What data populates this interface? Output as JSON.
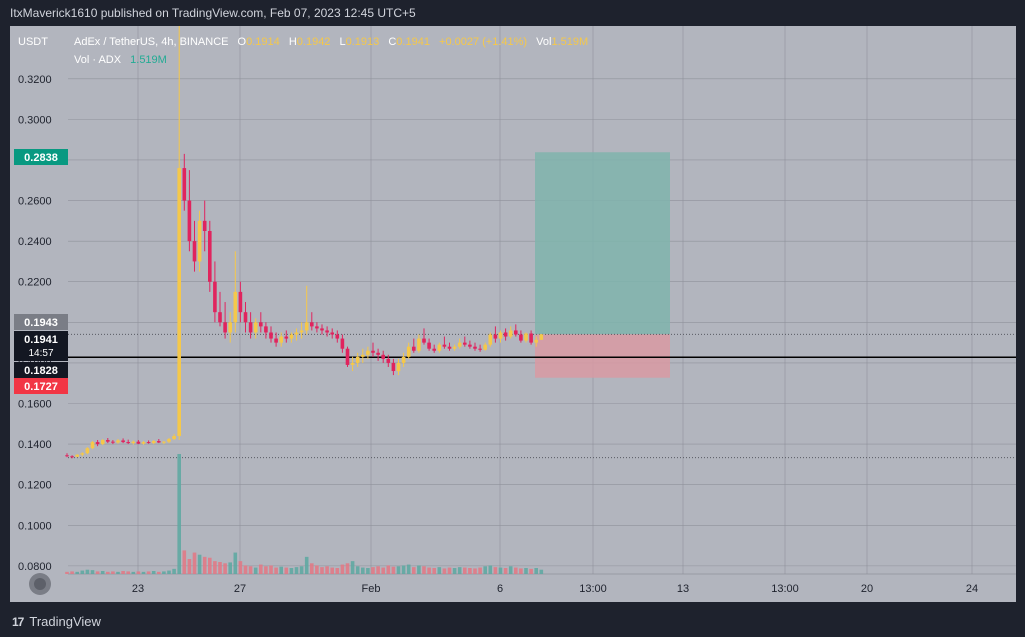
{
  "header": {
    "published_line": "ItxMaverick1610 published on TradingView.com, Feb 07, 2023 12:45 UTC+5"
  },
  "legend": {
    "currency": "USDT",
    "symbol_line": "AdEx / TetherUS, 4h, BINANCE",
    "o_label": "O",
    "o_value": "0.1914",
    "h_label": "H",
    "h_value": "0.1942",
    "l_label": "L",
    "l_value": "0.1913",
    "c_label": "C",
    "c_value": "0.1941",
    "change": "+0.0027 (+1.41%)",
    "vol_label": "Vol",
    "vol_value": "1.519M",
    "vol_line_label": "Vol · ADX",
    "vol_line_value": "1.519M"
  },
  "price_labels": {
    "target": "0.2838",
    "prev_close": "0.1943",
    "last_price": "0.1941",
    "countdown": "14:57",
    "line_level": "0.1828",
    "stop": "0.1727"
  },
  "footer": {
    "brand": "TradingView",
    "logo_text": "17"
  },
  "colors": {
    "background": "#b2b5be",
    "frame": "#1e222d",
    "bull": "#f5c84a",
    "bear": "#e0245e",
    "vol_bull": "#5fa9a2",
    "vol_bear": "#e07a86",
    "profit_zone": "#7fb4ad",
    "loss_zone": "#d89aa3",
    "target_badge": "#089981",
    "stop_badge": "#f23645"
  },
  "chart_data": {
    "type": "candlestick",
    "interval": "4h",
    "ylim": [
      0.076,
      0.346
    ],
    "y_ticks": [
      0.08,
      0.1,
      0.12,
      0.14,
      0.16,
      0.18,
      0.2,
      0.22,
      0.24,
      0.26,
      0.28,
      0.3,
      0.32
    ],
    "x_ticks": [
      "23",
      "27",
      "Feb",
      "6",
      "13:00",
      "13",
      "13:00",
      "20",
      "24"
    ],
    "horizontal_line": 0.1828,
    "dotted_lines": [
      0.1941,
      0.1333
    ],
    "position": {
      "entry": 0.1941,
      "target": 0.2838,
      "stop": 0.1727
    },
    "candles": [
      [
        0.1345,
        0.1355,
        0.1335,
        0.134
      ],
      [
        0.134,
        0.1345,
        0.133,
        0.1338
      ],
      [
        0.1338,
        0.135,
        0.1335,
        0.1348
      ],
      [
        0.1348,
        0.136,
        0.134,
        0.1355
      ],
      [
        0.1355,
        0.1385,
        0.135,
        0.138
      ],
      [
        0.138,
        0.1415,
        0.1375,
        0.141
      ],
      [
        0.141,
        0.142,
        0.139,
        0.14
      ],
      [
        0.14,
        0.1425,
        0.1395,
        0.142
      ],
      [
        0.142,
        0.143,
        0.1405,
        0.1412
      ],
      [
        0.1412,
        0.142,
        0.14,
        0.1408
      ],
      [
        0.1408,
        0.1425,
        0.1402,
        0.1418
      ],
      [
        0.1418,
        0.1428,
        0.1405,
        0.141
      ],
      [
        0.141,
        0.1422,
        0.14,
        0.1405
      ],
      [
        0.1405,
        0.1418,
        0.1398,
        0.1412
      ],
      [
        0.1412,
        0.142,
        0.14,
        0.1402
      ],
      [
        0.1402,
        0.1415,
        0.1398,
        0.141
      ],
      [
        0.141,
        0.1418,
        0.1402,
        0.1405
      ],
      [
        0.1405,
        0.142,
        0.14,
        0.1415
      ],
      [
        0.1415,
        0.1425,
        0.1405,
        0.1408
      ],
      [
        0.1408,
        0.1415,
        0.14,
        0.1412
      ],
      [
        0.1412,
        0.143,
        0.1405,
        0.1425
      ],
      [
        0.1425,
        0.145,
        0.142,
        0.144
      ],
      [
        0.144,
        0.346,
        0.142,
        0.276
      ],
      [
        0.276,
        0.283,
        0.255,
        0.26
      ],
      [
        0.26,
        0.275,
        0.235,
        0.24
      ],
      [
        0.24,
        0.25,
        0.225,
        0.23
      ],
      [
        0.23,
        0.255,
        0.225,
        0.25
      ],
      [
        0.25,
        0.26,
        0.235,
        0.245
      ],
      [
        0.245,
        0.25,
        0.215,
        0.22
      ],
      [
        0.22,
        0.23,
        0.2,
        0.205
      ],
      [
        0.205,
        0.215,
        0.198,
        0.2
      ],
      [
        0.2,
        0.21,
        0.192,
        0.195
      ],
      [
        0.195,
        0.205,
        0.19,
        0.2
      ],
      [
        0.2,
        0.235,
        0.195,
        0.215
      ],
      [
        0.215,
        0.22,
        0.2,
        0.205
      ],
      [
        0.205,
        0.21,
        0.195,
        0.2
      ],
      [
        0.2,
        0.205,
        0.192,
        0.195
      ],
      [
        0.195,
        0.202,
        0.192,
        0.2
      ],
      [
        0.2,
        0.205,
        0.195,
        0.198
      ],
      [
        0.198,
        0.2,
        0.192,
        0.195
      ],
      [
        0.195,
        0.198,
        0.19,
        0.192
      ],
      [
        0.192,
        0.195,
        0.188,
        0.19
      ],
      [
        0.19,
        0.195,
        0.188,
        0.193
      ],
      [
        0.193,
        0.196,
        0.19,
        0.192
      ],
      [
        0.192,
        0.195,
        0.19,
        0.194
      ],
      [
        0.194,
        0.197,
        0.191,
        0.195
      ],
      [
        0.195,
        0.2,
        0.192,
        0.196
      ],
      [
        0.196,
        0.218,
        0.194,
        0.2
      ],
      [
        0.2,
        0.205,
        0.196,
        0.198
      ],
      [
        0.198,
        0.2,
        0.195,
        0.197
      ],
      [
        0.197,
        0.199,
        0.194,
        0.196
      ],
      [
        0.196,
        0.198,
        0.193,
        0.195
      ],
      [
        0.195,
        0.197,
        0.192,
        0.194
      ],
      [
        0.194,
        0.196,
        0.19,
        0.192
      ],
      [
        0.192,
        0.194,
        0.185,
        0.187
      ],
      [
        0.187,
        0.188,
        0.178,
        0.179
      ],
      [
        0.179,
        0.183,
        0.176,
        0.18
      ],
      [
        0.18,
        0.185,
        0.178,
        0.183
      ],
      [
        0.183,
        0.187,
        0.18,
        0.184
      ],
      [
        0.184,
        0.188,
        0.182,
        0.186
      ],
      [
        0.186,
        0.19,
        0.183,
        0.185
      ],
      [
        0.185,
        0.187,
        0.181,
        0.184
      ],
      [
        0.184,
        0.186,
        0.18,
        0.182
      ],
      [
        0.182,
        0.184,
        0.178,
        0.18
      ],
      [
        0.18,
        0.182,
        0.174,
        0.176
      ],
      [
        0.176,
        0.182,
        0.174,
        0.18
      ],
      [
        0.18,
        0.185,
        0.178,
        0.183
      ],
      [
        0.183,
        0.19,
        0.182,
        0.188
      ],
      [
        0.188,
        0.192,
        0.185,
        0.186
      ],
      [
        0.186,
        0.194,
        0.185,
        0.192
      ],
      [
        0.192,
        0.197,
        0.189,
        0.19
      ],
      [
        0.19,
        0.192,
        0.186,
        0.187
      ],
      [
        0.187,
        0.189,
        0.185,
        0.186
      ],
      [
        0.186,
        0.19,
        0.185,
        0.189
      ],
      [
        0.189,
        0.193,
        0.187,
        0.188
      ],
      [
        0.188,
        0.19,
        0.186,
        0.187
      ],
      [
        0.187,
        0.189,
        0.186,
        0.188
      ],
      [
        0.188,
        0.192,
        0.187,
        0.19
      ],
      [
        0.19,
        0.193,
        0.188,
        0.189
      ],
      [
        0.189,
        0.191,
        0.187,
        0.188
      ],
      [
        0.188,
        0.19,
        0.186,
        0.187
      ],
      [
        0.187,
        0.189,
        0.1855,
        0.1865
      ],
      [
        0.1865,
        0.19,
        0.186,
        0.189
      ],
      [
        0.189,
        0.195,
        0.188,
        0.194
      ],
      [
        0.194,
        0.198,
        0.19,
        0.192
      ],
      [
        0.192,
        0.196,
        0.19,
        0.195
      ],
      [
        0.195,
        0.197,
        0.191,
        0.193
      ],
      [
        0.193,
        0.198,
        0.192,
        0.196
      ],
      [
        0.196,
        0.199,
        0.193,
        0.194
      ],
      [
        0.194,
        0.196,
        0.19,
        0.191
      ],
      [
        0.191,
        0.195,
        0.19,
        0.1945
      ],
      [
        0.1945,
        0.196,
        0.189,
        0.19
      ],
      [
        0.19,
        0.193,
        0.188,
        0.1914
      ],
      [
        0.1914,
        0.1942,
        0.1913,
        0.1941
      ]
    ],
    "volume": [
      0.05,
      0.06,
      0.05,
      0.08,
      0.1,
      0.09,
      0.06,
      0.07,
      0.05,
      0.06,
      0.05,
      0.07,
      0.06,
      0.05,
      0.06,
      0.05,
      0.06,
      0.07,
      0.05,
      0.06,
      0.08,
      0.12,
      2.8,
      0.55,
      0.35,
      0.5,
      0.45,
      0.4,
      0.38,
      0.3,
      0.28,
      0.25,
      0.27,
      0.5,
      0.3,
      0.2,
      0.18,
      0.15,
      0.22,
      0.18,
      0.2,
      0.15,
      0.17,
      0.15,
      0.14,
      0.16,
      0.18,
      0.4,
      0.25,
      0.2,
      0.16,
      0.18,
      0.15,
      0.14,
      0.22,
      0.25,
      0.3,
      0.18,
      0.15,
      0.14,
      0.16,
      0.18,
      0.15,
      0.2,
      0.17,
      0.18,
      0.2,
      0.22,
      0.16,
      0.2,
      0.18,
      0.15,
      0.14,
      0.16,
      0.13,
      0.15,
      0.14,
      0.16,
      0.15,
      0.14,
      0.13,
      0.15,
      0.18,
      0.2,
      0.16,
      0.15,
      0.14,
      0.18,
      0.15,
      0.13,
      0.14,
      0.12,
      0.14,
      0.1
    ]
  }
}
